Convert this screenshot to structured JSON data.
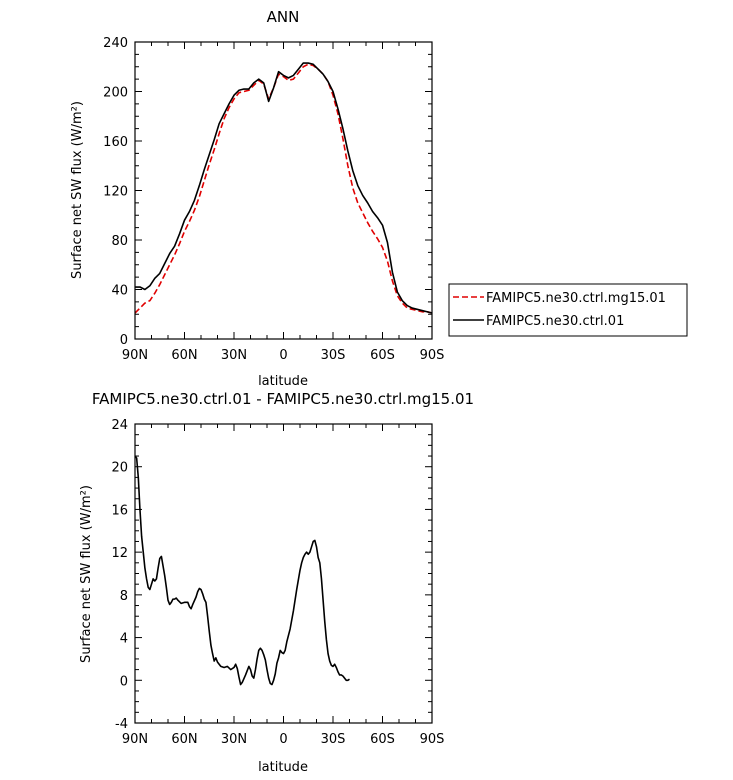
{
  "chart_data": [
    {
      "type": "line",
      "title": "ANN",
      "xlabel": "latitude",
      "ylabel": "Surface net SW flux (W/m²)",
      "xlim": [
        -90,
        90
      ],
      "ylim": [
        0,
        240
      ],
      "x_ticks": [
        -90,
        -60,
        -30,
        0,
        30,
        60,
        90
      ],
      "x_tick_labels": [
        "90N",
        "60N",
        "30N",
        "0",
        "30S",
        "60S",
        "90S"
      ],
      "y_ticks": [
        0,
        40,
        80,
        120,
        160,
        200,
        240
      ],
      "y_tick_labels": [
        "0",
        "40",
        "80",
        "120",
        "160",
        "200",
        "240"
      ],
      "legend": "right",
      "series": [
        {
          "name": "FAMIPC5.ne30.ctrl.mg15.01",
          "color": "#e00000",
          "dash": true,
          "points": [
            [
              -90,
              21
            ],
            [
              -87,
              25
            ],
            [
              -84,
              29
            ],
            [
              -81,
              31
            ],
            [
              -78,
              37
            ],
            [
              -75,
              44
            ],
            [
              -72,
              52
            ],
            [
              -69,
              60
            ],
            [
              -66,
              68
            ],
            [
              -63,
              77
            ],
            [
              -60,
              87
            ],
            [
              -57,
              95
            ],
            [
              -54,
              104
            ],
            [
              -51,
              115
            ],
            [
              -48,
              128
            ],
            [
              -45,
              141
            ],
            [
              -42,
              153
            ],
            [
              -39,
              166
            ],
            [
              -36,
              178
            ],
            [
              -33,
              187
            ],
            [
              -30,
              194
            ],
            [
              -27,
              199
            ],
            [
              -24,
              200
            ],
            [
              -21,
              201
            ],
            [
              -18,
              205
            ],
            [
              -15,
              209
            ],
            [
              -12,
              206
            ],
            [
              -9,
              194
            ],
            [
              -6,
              203
            ],
            [
              -3,
              214
            ],
            [
              0,
              212
            ],
            [
              3,
              209
            ],
            [
              6,
              210
            ],
            [
              9,
              215
            ],
            [
              12,
              220
            ],
            [
              15,
              222
            ],
            [
              18,
              221
            ],
            [
              21,
              218
            ],
            [
              24,
              214
            ],
            [
              27,
              208
            ],
            [
              30,
              197
            ],
            [
              33,
              182
            ],
            [
              36,
              162
            ],
            [
              39,
              140
            ],
            [
              42,
              122
            ],
            [
              45,
              110
            ],
            [
              48,
              102
            ],
            [
              51,
              94
            ],
            [
              54,
              87
            ],
            [
              57,
              81
            ],
            [
              60,
              74
            ],
            [
              63,
              63
            ],
            [
              66,
              47
            ],
            [
              69,
              35
            ],
            [
              72,
              29
            ],
            [
              75,
              25
            ],
            [
              78,
              24
            ],
            [
              81,
              23
            ],
            [
              84,
              22
            ],
            [
              87,
              22
            ],
            [
              90,
              21
            ]
          ]
        },
        {
          "name": "FAMIPC5.ne30.ctrl.01",
          "color": "#000000",
          "dash": false,
          "points": [
            [
              -90,
              42
            ],
            [
              -87,
              42
            ],
            [
              -84,
              40
            ],
            [
              -81,
              43
            ],
            [
              -78,
              49
            ],
            [
              -75,
              53
            ],
            [
              -72,
              61
            ],
            [
              -69,
              69
            ],
            [
              -66,
              75
            ],
            [
              -63,
              85
            ],
            [
              -60,
              96
            ],
            [
              -57,
              103
            ],
            [
              -54,
              112
            ],
            [
              -51,
              124
            ],
            [
              -48,
              137
            ],
            [
              -45,
              149
            ],
            [
              -42,
              161
            ],
            [
              -39,
              174
            ],
            [
              -36,
              182
            ],
            [
              -33,
              190
            ],
            [
              -30,
              197
            ],
            [
              -27,
              201
            ],
            [
              -24,
              202
            ],
            [
              -21,
              202
            ],
            [
              -18,
              207
            ],
            [
              -15,
              210
            ],
            [
              -12,
              207
            ],
            [
              -9,
              192
            ],
            [
              -6,
              203
            ],
            [
              -3,
              216
            ],
            [
              0,
              213
            ],
            [
              3,
              211
            ],
            [
              6,
              213
            ],
            [
              9,
              218
            ],
            [
              12,
              223
            ],
            [
              15,
              223
            ],
            [
              18,
              222
            ],
            [
              21,
              218
            ],
            [
              24,
              214
            ],
            [
              27,
              208
            ],
            [
              30,
              200
            ],
            [
              33,
              186
            ],
            [
              36,
              170
            ],
            [
              39,
              152
            ],
            [
              42,
              136
            ],
            [
              45,
              124
            ],
            [
              48,
              116
            ],
            [
              51,
              110
            ],
            [
              54,
              103
            ],
            [
              57,
              98
            ],
            [
              60,
              92
            ],
            [
              63,
              78
            ],
            [
              66,
              54
            ],
            [
              69,
              38
            ],
            [
              72,
              31
            ],
            [
              75,
              27
            ],
            [
              78,
              25
            ],
            [
              81,
              24
            ],
            [
              84,
              23
            ],
            [
              87,
              22
            ],
            [
              90,
              21
            ]
          ]
        }
      ]
    },
    {
      "type": "line",
      "title": "FAMIPC5.ne30.ctrl.01 - FAMIPC5.ne30.ctrl.mg15.01",
      "xlabel": "latitude",
      "ylabel": "Surface net SW flux (W/m²)",
      "xlim": [
        -90,
        90
      ],
      "ylim": [
        -4,
        24
      ],
      "x_ticks": [
        -90,
        -60,
        -30,
        0,
        30,
        60,
        90
      ],
      "x_tick_labels": [
        "90N",
        "60N",
        "30N",
        "0",
        "30S",
        "60S",
        "90S"
      ],
      "y_ticks": [
        -4,
        0,
        4,
        8,
        12,
        16,
        20,
        24
      ],
      "y_tick_labels": [
        "-4",
        "0",
        "4",
        "8",
        "12",
        "16",
        "20",
        "24"
      ],
      "series": [
        {
          "color": "#000000",
          "dash": false,
          "points": [
            [
              -90,
              21
            ],
            [
              -89,
              20.8
            ],
            [
              -88,
              19
            ],
            [
              -87,
              16
            ],
            [
              -86,
              13.5
            ],
            [
              -85,
              12
            ],
            [
              -84,
              10.5
            ],
            [
              -83,
              9.5
            ],
            [
              -82,
              8.7
            ],
            [
              -81,
              8.5
            ],
            [
              -80,
              9
            ],
            [
              -79,
              9.5
            ],
            [
              -78,
              9.3
            ],
            [
              -77,
              9.5
            ],
            [
              -76,
              10.5
            ],
            [
              -75,
              11.4
            ],
            [
              -74,
              11.6
            ],
            [
              -73,
              10.7
            ],
            [
              -72,
              9.8
            ],
            [
              -71,
              8.7
            ],
            [
              -70,
              7.5
            ],
            [
              -69,
              7.1
            ],
            [
              -68,
              7.3
            ],
            [
              -67,
              7.6
            ],
            [
              -66,
              7.6
            ],
            [
              -65,
              7.7
            ],
            [
              -64,
              7.5
            ],
            [
              -62,
              7.2
            ],
            [
              -60,
              7.3
            ],
            [
              -58,
              7.3
            ],
            [
              -57,
              6.9
            ],
            [
              -56,
              6.7
            ],
            [
              -55,
              7.1
            ],
            [
              -53,
              7.8
            ],
            [
              -52,
              8.3
            ],
            [
              -51,
              8.6
            ],
            [
              -50,
              8.5
            ],
            [
              -49,
              8.1
            ],
            [
              -48,
              7.6
            ],
            [
              -47,
              7.3
            ],
            [
              -46,
              6
            ],
            [
              -45,
              4.6
            ],
            [
              -44,
              3.3
            ],
            [
              -43,
              2.5
            ],
            [
              -42,
              1.8
            ],
            [
              -41,
              2.1
            ],
            [
              -40,
              1.7
            ],
            [
              -38,
              1.3
            ],
            [
              -36,
              1.2
            ],
            [
              -34,
              1.3
            ],
            [
              -32,
              1
            ],
            [
              -30,
              1.2
            ],
            [
              -29,
              1.5
            ],
            [
              -28,
              1.1
            ],
            [
              -27,
              0.3
            ],
            [
              -26,
              -0.4
            ],
            [
              -25,
              -0.2
            ],
            [
              -23,
              0.5
            ],
            [
              -21,
              1.3
            ],
            [
              -20,
              1
            ],
            [
              -19,
              0.4
            ],
            [
              -18,
              0.2
            ],
            [
              -17,
              1
            ],
            [
              -16,
              2
            ],
            [
              -15,
              2.8
            ],
            [
              -14,
              3
            ],
            [
              -13,
              2.8
            ],
            [
              -12,
              2.4
            ],
            [
              -11,
              1.9
            ],
            [
              -10,
              1
            ],
            [
              -9,
              0.2
            ],
            [
              -8,
              -0.3
            ],
            [
              -7,
              -0.4
            ],
            [
              -6,
              0
            ],
            [
              -5,
              0.6
            ],
            [
              -4,
              1.6
            ],
            [
              -3,
              2.1
            ],
            [
              -2,
              2.8
            ],
            [
              -1,
              2.6
            ],
            [
              0,
              2.5
            ],
            [
              1,
              2.8
            ],
            [
              2,
              3.6
            ],
            [
              4,
              4.8
            ],
            [
              6,
              6.5
            ],
            [
              8,
              8.5
            ],
            [
              10,
              10.3
            ],
            [
              11,
              11
            ],
            [
              12,
              11.5
            ],
            [
              13,
              11.8
            ],
            [
              14,
              12
            ],
            [
              15,
              11.8
            ],
            [
              16,
              12
            ],
            [
              17,
              12.5
            ],
            [
              18,
              13
            ],
            [
              19,
              13.1
            ],
            [
              20,
              12.5
            ],
            [
              21,
              11.5
            ],
            [
              22,
              11
            ],
            [
              23,
              9.5
            ],
            [
              24,
              7.5
            ],
            [
              25,
              5.5
            ],
            [
              26,
              3.8
            ],
            [
              27,
              2.5
            ],
            [
              28,
              1.8
            ],
            [
              29,
              1.4
            ],
            [
              30,
              1.3
            ],
            [
              31,
              1.5
            ],
            [
              32,
              1.2
            ],
            [
              33,
              0.8
            ],
            [
              34,
              0.5
            ],
            [
              35,
              0.5
            ],
            [
              36,
              0.4
            ],
            [
              37,
              0.2
            ],
            [
              38,
              0
            ],
            [
              39,
              0
            ],
            [
              40,
              0.1
            ]
          ]
        }
      ]
    }
  ]
}
